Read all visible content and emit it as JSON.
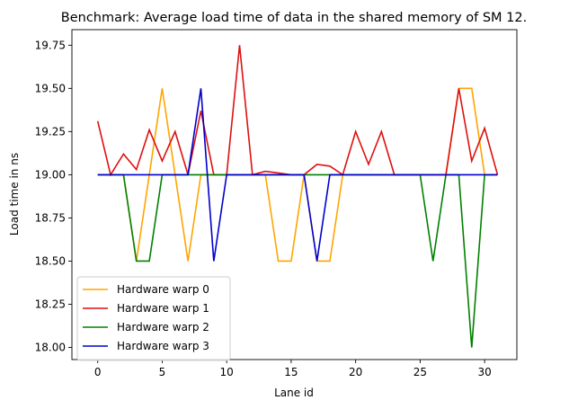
{
  "chart_data": {
    "type": "line",
    "title": "Benchmark: Average load time of data in the shared memory of SM 12.",
    "xlabel": "Lane id",
    "ylabel": "Load time in ns",
    "xlim": [
      -2,
      32.5
    ],
    "ylim": [
      17.93,
      19.84
    ],
    "xticks": [
      0,
      5,
      10,
      15,
      20,
      25,
      30
    ],
    "yticks": [
      18.0,
      18.25,
      18.5,
      18.75,
      19.0,
      19.25,
      19.5,
      19.75
    ],
    "x": [
      0,
      1,
      2,
      3,
      4,
      5,
      6,
      7,
      8,
      9,
      10,
      11,
      12,
      13,
      14,
      15,
      16,
      17,
      18,
      19,
      20,
      21,
      22,
      23,
      24,
      25,
      26,
      27,
      28,
      29,
      30,
      31
    ],
    "legend_position": "lower-left",
    "grid": false,
    "series": [
      {
        "name": "Hardware warp 0",
        "color": "#FFA500",
        "values": [
          19.0,
          19.0,
          19.0,
          18.5,
          19.0,
          19.5,
          19.0,
          18.5,
          19.0,
          19.0,
          19.0,
          19.0,
          19.0,
          19.0,
          18.5,
          18.5,
          19.0,
          18.5,
          18.5,
          19.0,
          19.0,
          19.0,
          19.0,
          19.0,
          19.0,
          19.0,
          19.0,
          19.0,
          19.5,
          19.5,
          19.0,
          19.0
        ]
      },
      {
        "name": "Hardware warp 1",
        "color": "#DD1111",
        "values": [
          19.31,
          19.0,
          19.12,
          19.03,
          19.26,
          19.08,
          19.25,
          19.0,
          19.37,
          19.0,
          19.0,
          19.75,
          19.0,
          19.02,
          19.01,
          19.0,
          19.0,
          19.06,
          19.05,
          19.0,
          19.25,
          19.06,
          19.25,
          19.0,
          19.0,
          19.0,
          19.0,
          19.0,
          19.5,
          19.08,
          19.27,
          19.0
        ]
      },
      {
        "name": "Hardware warp 2",
        "color": "#008000",
        "values": [
          19.0,
          19.0,
          19.0,
          18.5,
          18.5,
          19.0,
          19.0,
          19.0,
          19.0,
          19.0,
          19.0,
          19.0,
          19.0,
          19.0,
          19.0,
          19.0,
          19.0,
          19.0,
          19.0,
          19.0,
          19.0,
          19.0,
          19.0,
          19.0,
          19.0,
          19.0,
          18.5,
          19.0,
          19.0,
          18.0,
          19.0,
          19.0
        ]
      },
      {
        "name": "Hardware warp 3",
        "color": "#0000CC",
        "values": [
          19.0,
          19.0,
          19.0,
          19.0,
          19.0,
          19.0,
          19.0,
          19.0,
          19.5,
          18.5,
          19.0,
          19.0,
          19.0,
          19.0,
          19.0,
          19.0,
          19.0,
          18.5,
          19.0,
          19.0,
          19.0,
          19.0,
          19.0,
          19.0,
          19.0,
          19.0,
          19.0,
          19.0,
          19.0,
          19.0,
          19.0,
          19.0
        ]
      }
    ]
  }
}
